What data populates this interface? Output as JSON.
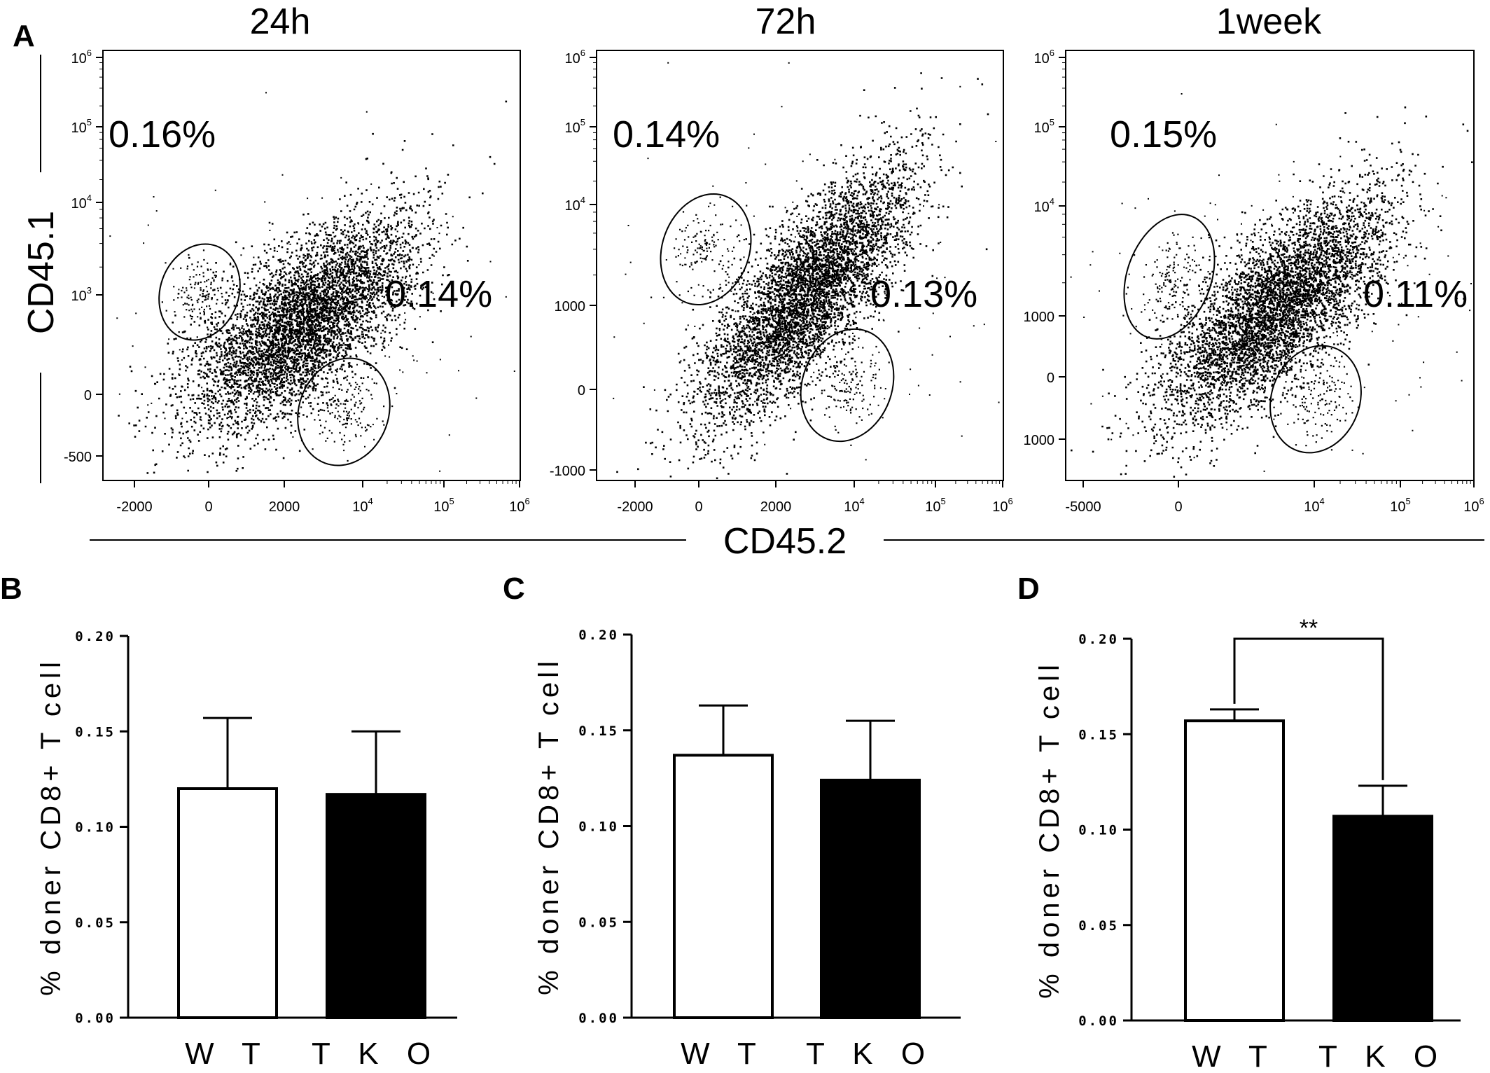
{
  "flow_panel": {
    "letter": "A",
    "y_axis_label": "CD45.1",
    "x_axis_label": "CD45.2",
    "plots": [
      {
        "title": "24h",
        "upper_percent": "0.16%",
        "lower_percent": "0.14%",
        "y_ticks": [
          "10^6",
          "10^5",
          "10^4",
          "10^3",
          "0",
          "-500"
        ],
        "x_ticks": [
          "-2000",
          "0",
          "2000",
          "10^4",
          "10^5",
          "10^6"
        ]
      },
      {
        "title": "72h",
        "upper_percent": "0.14%",
        "lower_percent": "0.13%",
        "y_ticks": [
          "10^6",
          "10^5",
          "10^4",
          "1000",
          "0",
          "-1000"
        ],
        "x_ticks": [
          "-2000",
          "0",
          "2000",
          "10^4",
          "10^5",
          "10^6"
        ]
      },
      {
        "title": "1week",
        "upper_percent": "0.15%",
        "lower_percent": "0.11%",
        "y_ticks": [
          "10^6",
          "10^5",
          "10^4",
          "1000",
          "0",
          "1000"
        ],
        "x_ticks": [
          "-5000",
          "0",
          "10^4",
          "10^5",
          "10^6"
        ]
      }
    ]
  },
  "chart_data": [
    {
      "letter": "B",
      "type": "bar",
      "categories": [
        "W T",
        "T K O"
      ],
      "values": [
        0.12,
        0.117
      ],
      "error_upper": [
        0.157,
        0.15
      ],
      "colors": [
        "#ffffff",
        "#000000"
      ],
      "ylabel": "% doner CD8+ T cell",
      "ylim": [
        0,
        0.2
      ],
      "y_ticks": [
        "0.00",
        "0.05",
        "0.10",
        "0.15",
        "0.20"
      ],
      "significance": ""
    },
    {
      "letter": "C",
      "type": "bar",
      "categories": [
        "W T",
        "T K O"
      ],
      "values": [
        0.137,
        0.124
      ],
      "error_upper": [
        0.163,
        0.155
      ],
      "colors": [
        "#ffffff",
        "#000000"
      ],
      "ylabel": "% doner CD8+ T cell",
      "ylim": [
        0,
        0.2
      ],
      "y_ticks": [
        "0.00",
        "0.05",
        "0.10",
        "0.15",
        "0.20"
      ],
      "significance": ""
    },
    {
      "letter": "D",
      "type": "bar",
      "categories": [
        "W T",
        "T K O"
      ],
      "values": [
        0.157,
        0.107
      ],
      "error_upper": [
        0.163,
        0.123
      ],
      "colors": [
        "#ffffff",
        "#000000"
      ],
      "ylabel": "% doner CD8+ T cell",
      "ylim": [
        0,
        0.2
      ],
      "y_ticks": [
        "0.00",
        "0.05",
        "0.10",
        "0.15",
        "0.20"
      ],
      "significance": "**"
    }
  ]
}
